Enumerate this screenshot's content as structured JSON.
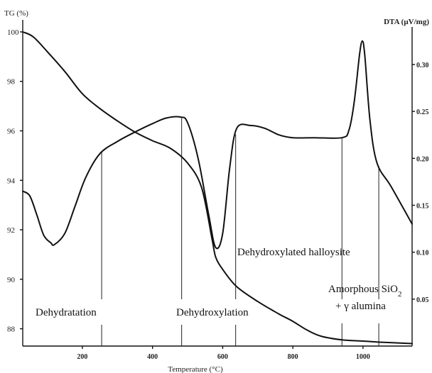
{
  "chart_data": {
    "type": "line",
    "xlabel": "Temperature (°C)",
    "ylabel_left": "TG (%)",
    "ylabel_right": "DTA (µV/mg)",
    "xlim": [
      30,
      1140
    ],
    "ylim_left": [
      87.3,
      100.2
    ],
    "ylim_right": [
      0.0,
      0.34
    ],
    "x_ticks": [
      "200",
      "400",
      "600",
      "800",
      "1000"
    ],
    "x_tick_values": [
      200,
      400,
      600,
      800,
      1000
    ],
    "left_ticks": [
      "100",
      "98",
      "96",
      "94",
      "92",
      "90",
      "88"
    ],
    "left_tick_values": [
      100,
      98,
      96,
      94,
      92,
      90,
      88
    ],
    "right_ticks": [
      "0.30",
      "0.25",
      "0.20",
      "0.15",
      "0.10",
      "0.05"
    ],
    "right_tick_values": [
      0.3,
      0.25,
      0.2,
      0.15,
      0.1,
      0.05
    ],
    "grid": false,
    "series": [
      {
        "axis": "left",
        "x": [
          30,
          60,
          100,
          150,
          200,
          250,
          300,
          350,
          400,
          450,
          500,
          540,
          570,
          580,
          600,
          640,
          700,
          760,
          800,
          840,
          880,
          940,
          1000,
          1060,
          1140
        ],
        "y": [
          100.0,
          99.8,
          99.2,
          98.4,
          97.5,
          96.9,
          96.4,
          95.95,
          95.6,
          95.3,
          94.7,
          93.7,
          91.6,
          90.9,
          90.4,
          89.7,
          89.1,
          88.6,
          88.3,
          87.95,
          87.7,
          87.55,
          87.5,
          87.45,
          87.4
        ]
      },
      {
        "axis": "right",
        "x": [
          30,
          50,
          70,
          90,
          110,
          120,
          150,
          180,
          210,
          250,
          300,
          350,
          400,
          440,
          480,
          500,
          530,
          560,
          580,
          600,
          620,
          640,
          680,
          720,
          760,
          800,
          860,
          940,
          960,
          975,
          990,
          998,
          1005,
          1020,
          1040,
          1080,
          1140
        ],
        "y": [
          0.165,
          0.16,
          0.14,
          0.118,
          0.11,
          0.108,
          0.12,
          0.15,
          0.18,
          0.205,
          0.218,
          0.228,
          0.237,
          0.243,
          0.244,
          0.238,
          0.2,
          0.14,
          0.105,
          0.12,
          0.19,
          0.232,
          0.235,
          0.232,
          0.225,
          0.222,
          0.222,
          0.222,
          0.23,
          0.26,
          0.31,
          0.325,
          0.31,
          0.24,
          0.195,
          0.17,
          0.13
        ]
      }
    ],
    "markers": [
      255,
      483,
      637,
      940,
      1045
    ],
    "annotations": [
      {
        "x": 150,
        "tg": 88.5,
        "text": "Dehydratation"
      },
      {
        "x": 600,
        "tg": 88.5,
        "text": "Dehydroxylation"
      },
      {
        "x": 840,
        "tg": 91.0,
        "text": "Dehydroxylated halloysite"
      },
      {
        "x": 1030,
        "tg": 89.2,
        "text": "Amorphous SiO"
      },
      {
        "x": 1030,
        "tg": 88.6,
        "text": "+ γ alumina"
      }
    ],
    "annotation_subscripts": {
      "3": "2"
    }
  }
}
